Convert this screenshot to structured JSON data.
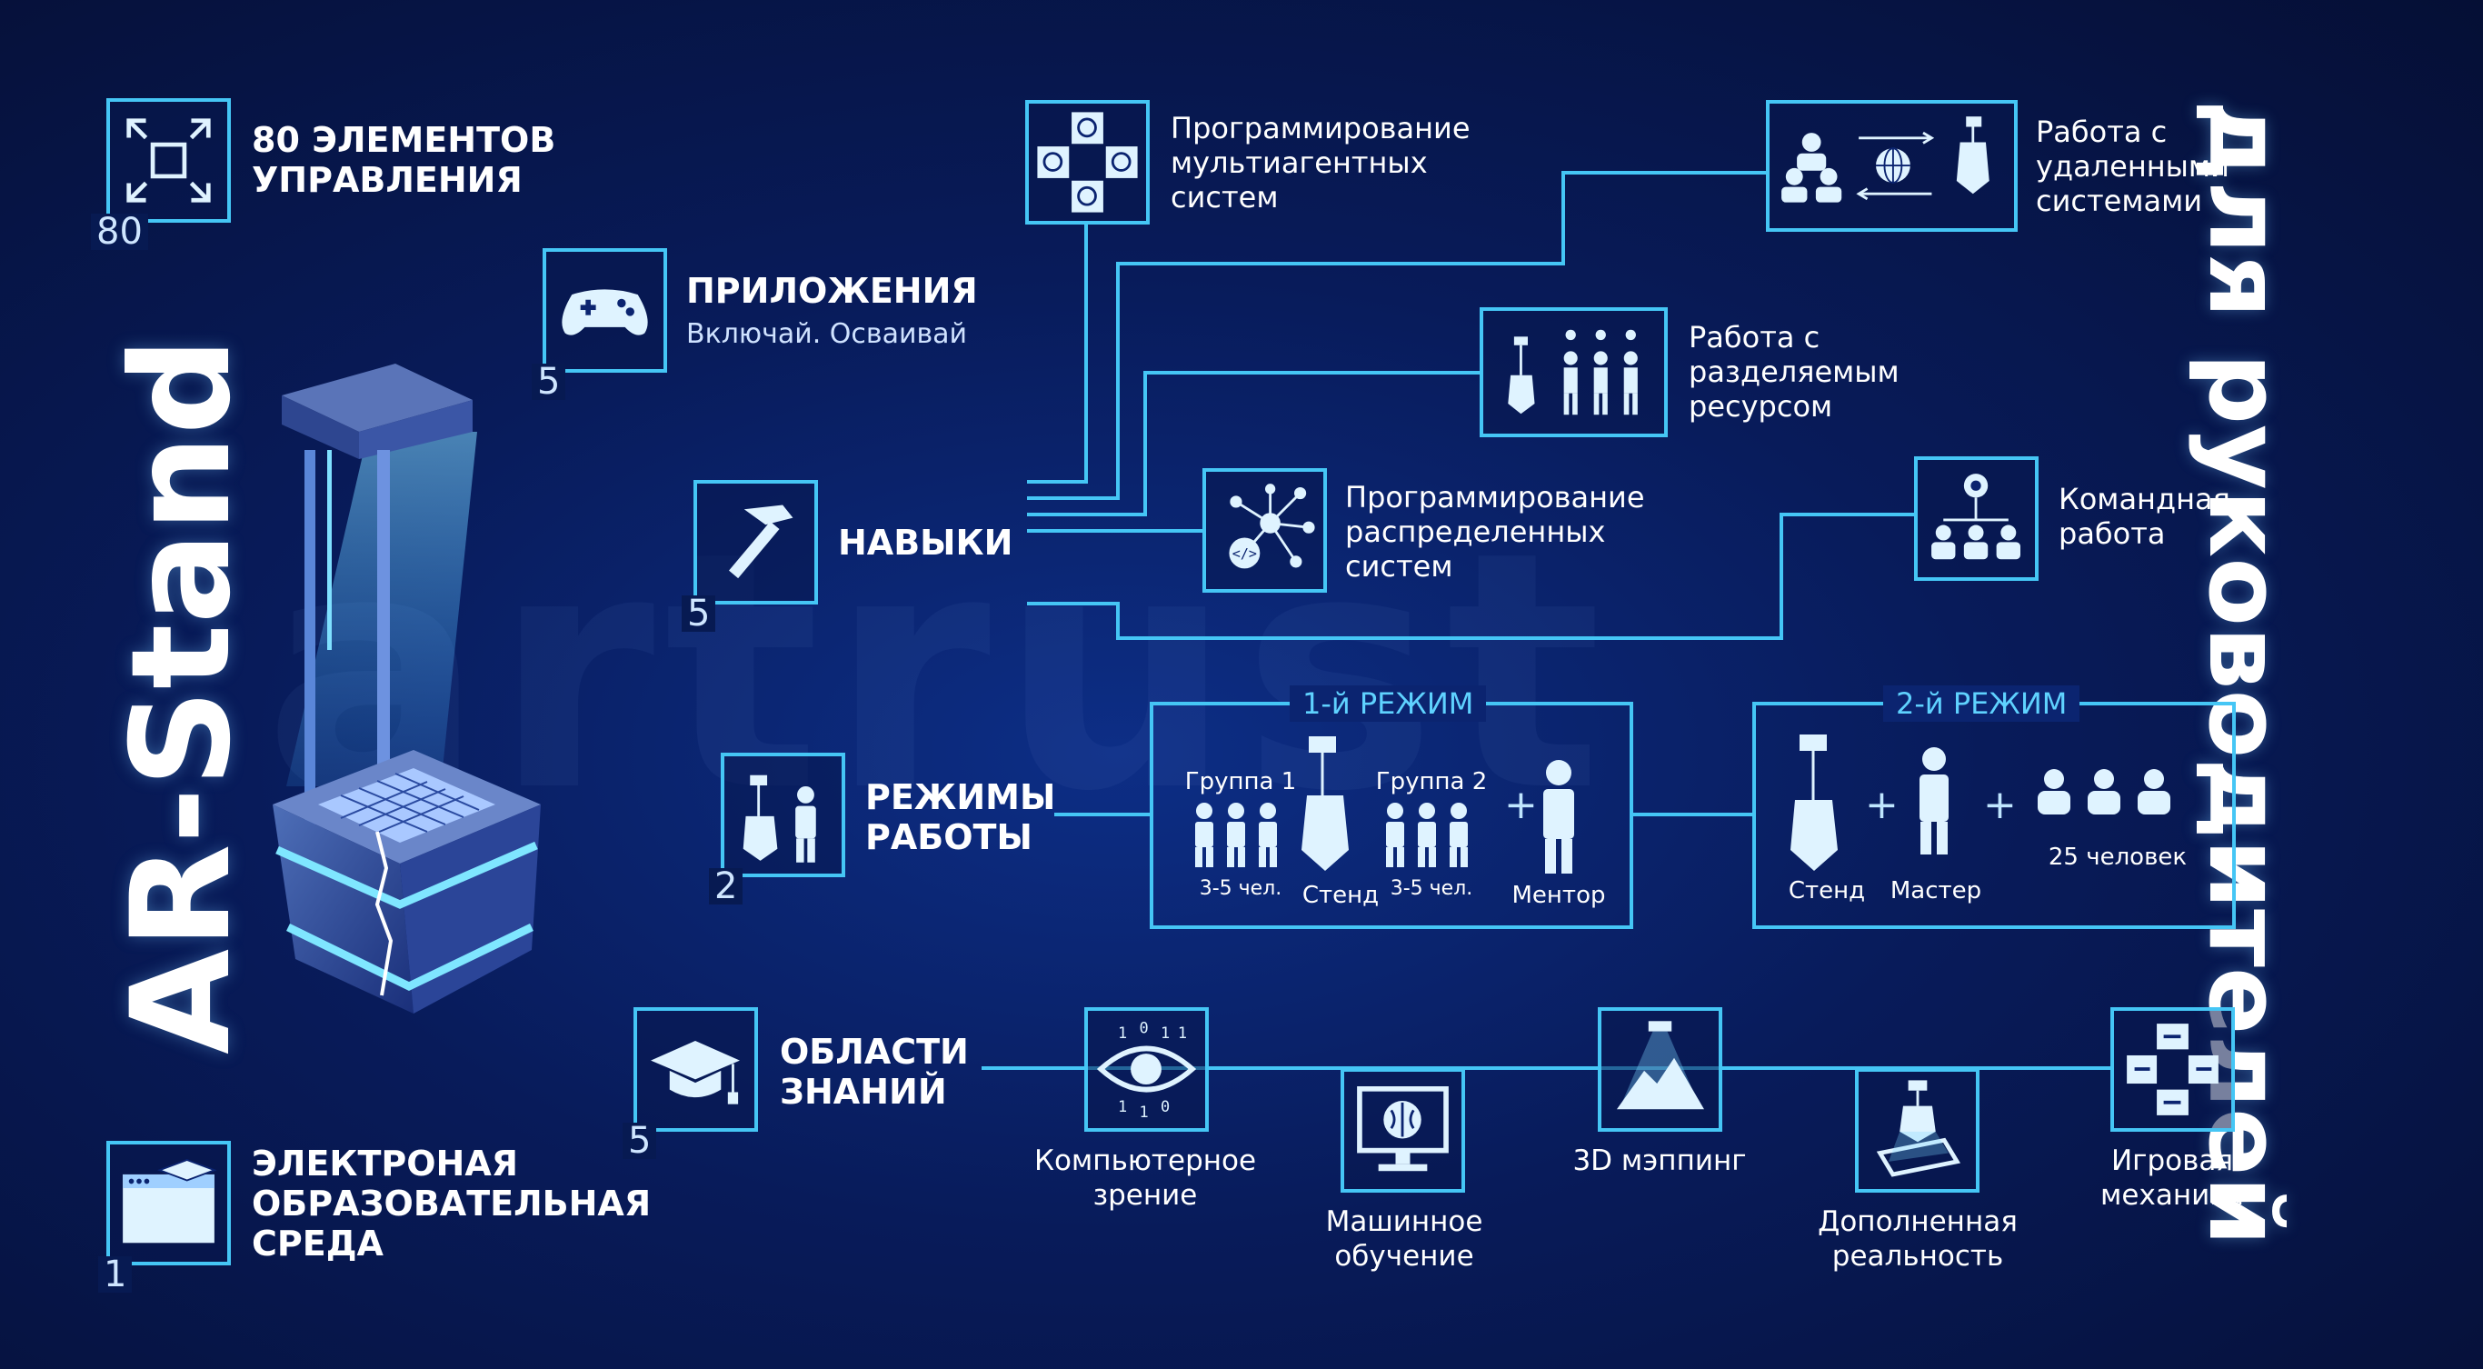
{
  "main_title": "AR-Stand",
  "side_title": "для руководителей",
  "watermark": "artrust",
  "controls": {
    "count": "80",
    "title_line1": "80 ЭЛЕМЕНТОВ",
    "title_line2": "УПРАВЛЕНИЯ"
  },
  "apps": {
    "count": "5",
    "title": "ПРИЛОЖЕНИЯ",
    "subtitle": "Включай. Осваивай"
  },
  "skills": {
    "count": "5",
    "title": "НАВЫКИ"
  },
  "modes": {
    "count": "2",
    "title_line1": "РЕЖИМЫ",
    "title_line2": "РАБОТЫ"
  },
  "knowledge": {
    "count": "5",
    "title_line1": "ОБЛАСТИ",
    "title_line2": "ЗНАНИЙ"
  },
  "eenv": {
    "count": "1",
    "title_line1": "ЭЛЕКТРОНАЯ",
    "title_line2": "ОБРАЗОВАТЕЛЬНАЯ",
    "title_line3": "СРЕДА"
  },
  "skill_items": [
    {
      "line1": "Программирование",
      "line2": "мультиагентных",
      "line3": "систем"
    },
    {
      "line1": "Работа с",
      "line2": "удаленными",
      "line3": "системами"
    },
    {
      "line1": "Работа с",
      "line2": "разделяемым",
      "line3": "ресурсом"
    },
    {
      "line1": "Программирование",
      "line2": "распределенных",
      "line3": "систем"
    },
    {
      "line1": "Командная",
      "line2": "работа"
    }
  ],
  "mode1": {
    "title": "1-й РЕЖИМ",
    "group1": "Группа 1",
    "group2": "Группа 2",
    "group_size": "3-5 чел.",
    "stand": "Стенд",
    "mentor": "Ментор"
  },
  "mode2": {
    "title": "2-й РЕЖИМ",
    "stand": "Стенд",
    "master": "Мастер",
    "people": "25 человек"
  },
  "areas": [
    {
      "line1": "Компьютерное",
      "line2": "зрение"
    },
    {
      "line1": "Машинное",
      "line2": "обучение"
    },
    {
      "line1": "3D мэппинг"
    },
    {
      "line1": "Дополненная",
      "line2": "реальность"
    },
    {
      "line1": "Игровая",
      "line2": "механика"
    }
  ],
  "colors": {
    "background": "#081b5a",
    "accent": "#45c6f5",
    "text": "#ffffff"
  }
}
